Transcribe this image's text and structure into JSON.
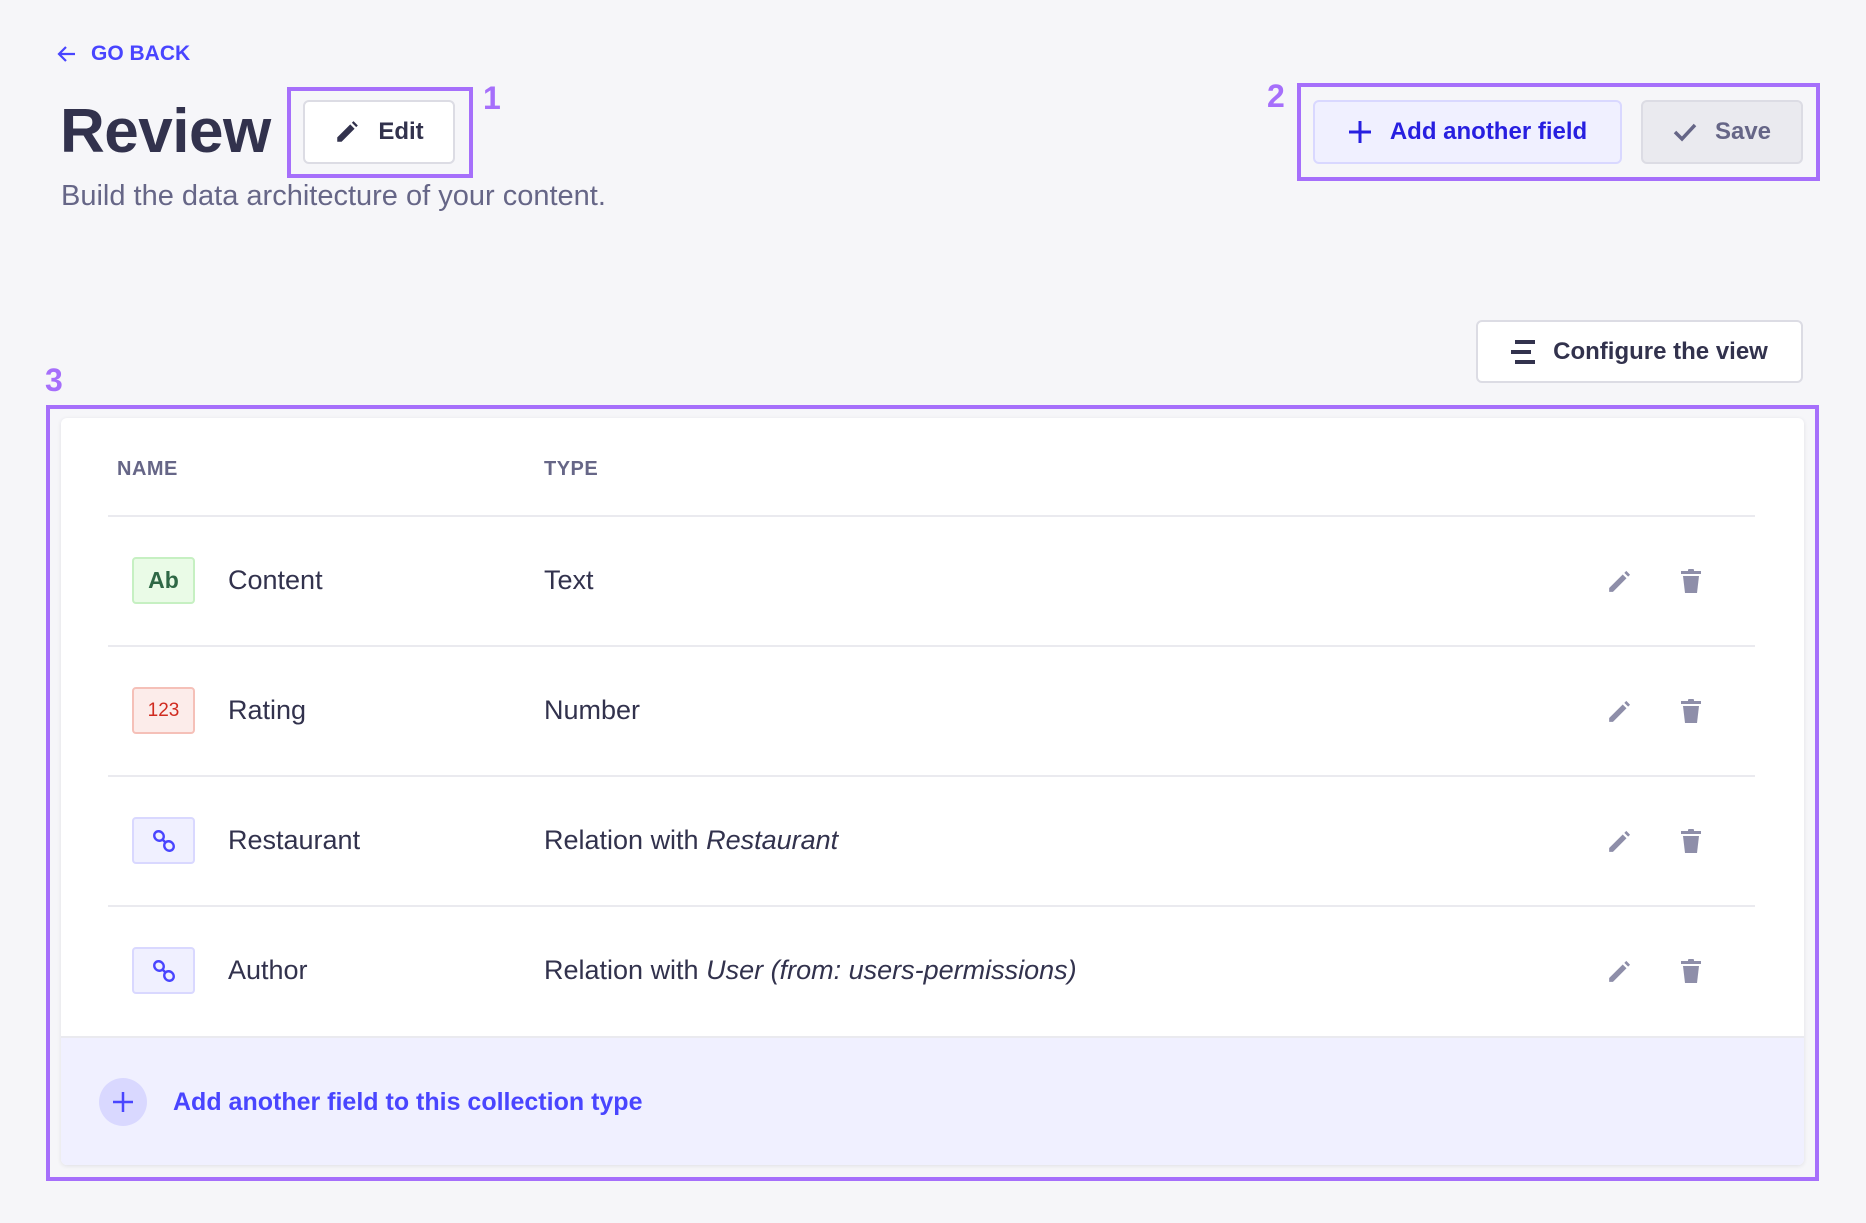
{
  "header": {
    "back_label": "GO BACK",
    "title": "Review",
    "subtitle": "Build the data architecture of your content.",
    "edit_label": "Edit",
    "add_field_label": "Add another field",
    "save_label": "Save",
    "configure_label": "Configure the view"
  },
  "annotations": [
    "1",
    "2",
    "3"
  ],
  "table": {
    "columns": [
      "NAME",
      "TYPE"
    ],
    "rows": [
      {
        "badge": "Ab",
        "badge_kind": "text",
        "name": "Content",
        "type_prefix": "Text",
        "type_target": ""
      },
      {
        "badge": "123",
        "badge_kind": "number",
        "name": "Rating",
        "type_prefix": "Number",
        "type_target": ""
      },
      {
        "badge": "",
        "badge_kind": "relation",
        "name": "Restaurant",
        "type_prefix": "Relation with ",
        "type_target": "Restaurant"
      },
      {
        "badge": "",
        "badge_kind": "relation",
        "name": "Author",
        "type_prefix": "Relation with ",
        "type_target": "User (from: users-permissions)"
      }
    ],
    "footer_label": "Add another field to this collection type"
  },
  "colors": {
    "primary": "#4945ff",
    "annotation": "#a66ffb",
    "text_badge": "#2f6846",
    "number_badge": "#d02b20"
  },
  "icons": {
    "back": "arrow-left-icon",
    "edit": "pencil-icon",
    "add": "plus-icon",
    "save": "check-icon",
    "configure": "layout-icon",
    "relation": "link-icon",
    "row_edit": "pencil-icon",
    "row_delete": "trash-icon"
  }
}
